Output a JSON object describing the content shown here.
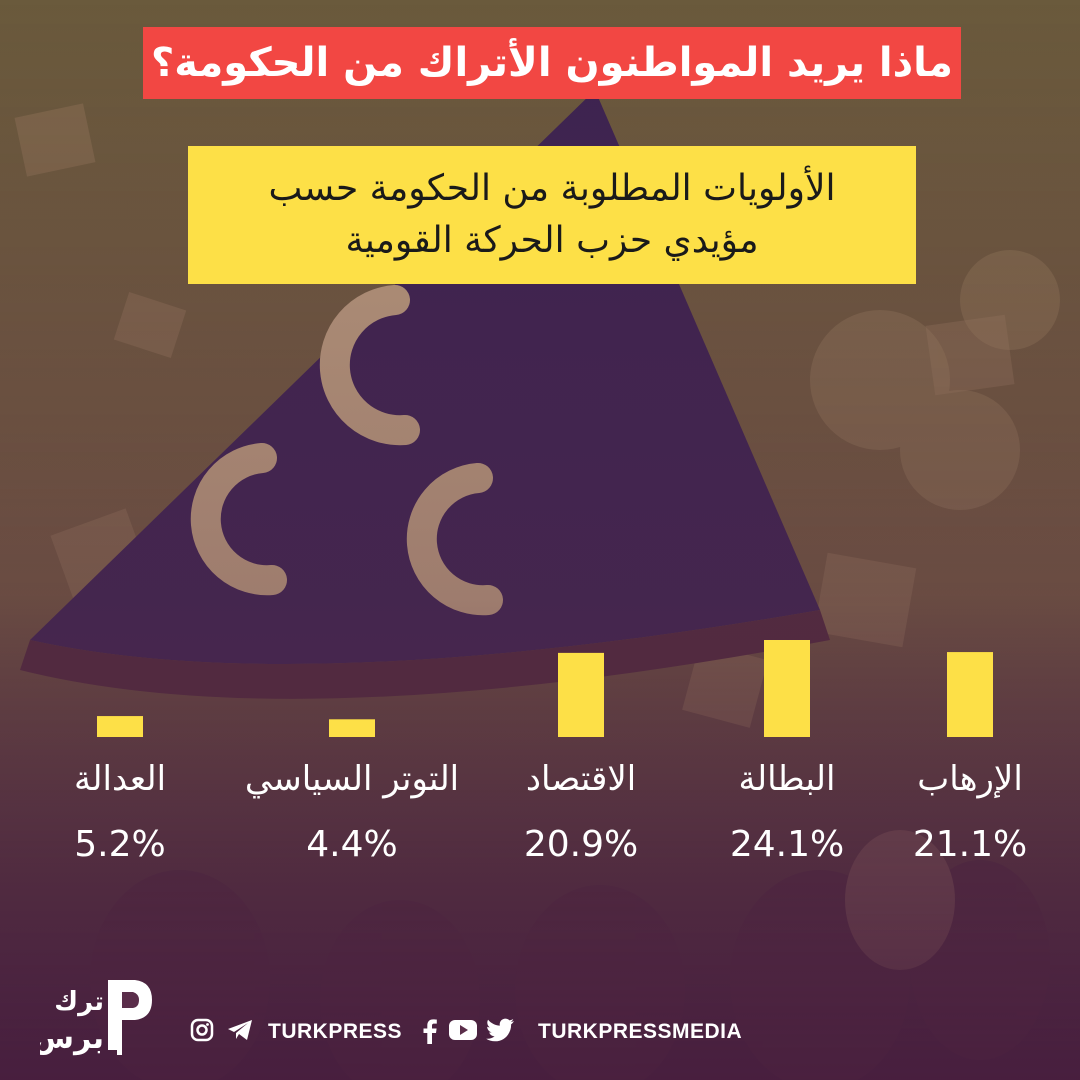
{
  "header": {
    "title": "ماذا يريد المواطنون الأتراك من الحكومة؟",
    "subtitle_line1": "الأولويات المطلوبة من الحكومة حسب",
    "subtitle_line2": "مؤيدي حزب الحركة القومية"
  },
  "colors": {
    "title_bg": "#f24743",
    "subtitle_bg": "#fde047",
    "bar": "#fde047",
    "overlay": "#5a2d4a"
  },
  "chart_data": {
    "type": "bar",
    "categories": [
      "الإرهاب",
      "البطالة",
      "الاقتصاد",
      "التوتر السياسي",
      "العدالة"
    ],
    "values": [
      21.1,
      24.1,
      20.9,
      4.4,
      5.2
    ],
    "value_labels": [
      "21.1%",
      "24.1%",
      "20.9%",
      "4.4%",
      "5.2%"
    ],
    "title": "الأولويات المطلوبة من الحكومة حسب مؤيدي حزب الحركة القومية",
    "ylim": [
      0,
      30
    ],
    "grid": false,
    "legend": "none"
  },
  "footer": {
    "handle_left": "TURKPRESS",
    "handle_right": "TURKPRESSMEDIA",
    "icons": [
      "instagram-icon",
      "telegram-icon",
      "facebook-icon",
      "youtube-icon",
      "twitter-icon"
    ]
  },
  "logo": {
    "line1": "ترك",
    "line2": "برس"
  }
}
